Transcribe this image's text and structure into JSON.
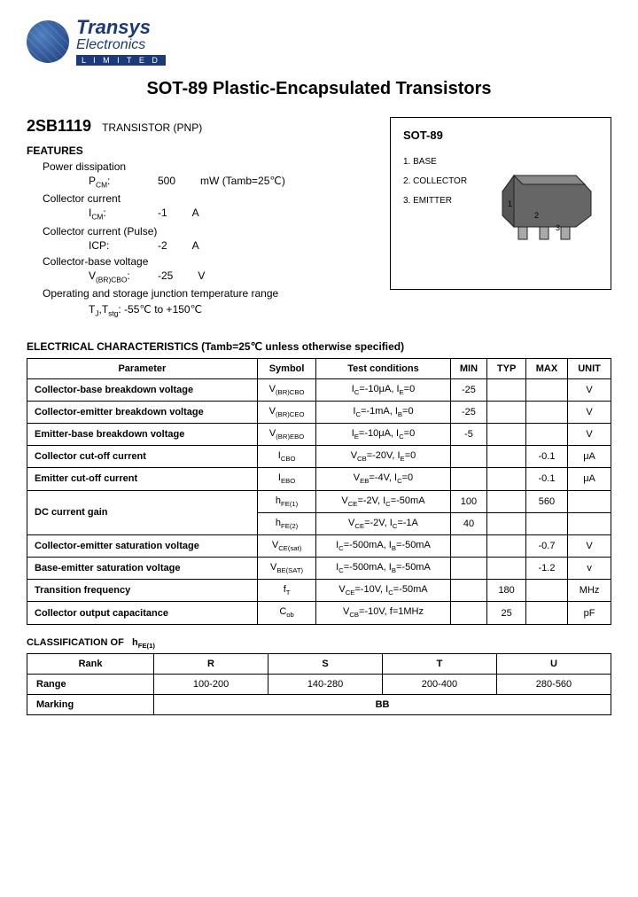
{
  "logo": {
    "brand": "Transys",
    "sub": "Electronics",
    "limited": "L I M I T E D"
  },
  "title": "SOT-89 Plastic-Encapsulated Transistors",
  "part": "2SB1119",
  "type": "TRANSISTOR (PNP)",
  "features_heading": "FEATURES",
  "features": [
    {
      "label": "Power dissipation",
      "sym": "P",
      "sub": "CM",
      "suffix": ":",
      "val": "500",
      "unit": "mW (Tamb=25℃)"
    },
    {
      "label": "Collector current",
      "sym": "I",
      "sub": "CM",
      "suffix": ":",
      "val": "-1",
      "unit": "A"
    },
    {
      "label": "Collector current (Pulse)",
      "sym": "ICP:",
      "sub": "",
      "suffix": "",
      "val": "-2",
      "unit": "A"
    },
    {
      "label": "Collector-base voltage",
      "sym": "V",
      "sub": "(BR)CBO",
      "suffix": ":",
      "val": "-25",
      "unit": "V"
    }
  ],
  "temp_label": "Operating and storage junction temperature range",
  "temp_val": "T_J,T_stg: -55℃ to +150℃",
  "pkg": {
    "title": "SOT-89",
    "pins": [
      "1. BASE",
      "2. COLLECTOR",
      "3. EMITTER"
    ]
  },
  "char_heading": "ELECTRICAL CHARACTERISTICS (Tamb=25℃   unless otherwise   specified)",
  "char_cols": [
    "Parameter",
    "Symbol",
    "Test    conditions",
    "MIN",
    "TYP",
    "MAX",
    "UNIT"
  ],
  "char_rows": [
    [
      "Collector-base breakdown voltage",
      "V(BR)CBO",
      "IC=-10μA, IE=0",
      "-25",
      "",
      "",
      "V"
    ],
    [
      "Collector-emitter breakdown voltage",
      "V(BR)CEO",
      "IC=-1mA, IB=0",
      "-25",
      "",
      "",
      "V"
    ],
    [
      "Emitter-base breakdown voltage",
      "V(BR)EBO",
      "IE=-10μA, IC=0",
      "-5",
      "",
      "",
      "V"
    ],
    [
      "Collector cut-off current",
      "ICBO",
      "VCB=-20V, IE=0",
      "",
      "",
      "-0.1",
      "μA"
    ],
    [
      "Emitter cut-off current",
      "IEBO",
      "VEB=-4V, IC=0",
      "",
      "",
      "-0.1",
      "μA"
    ],
    [
      "DC current gain",
      "hFE(1)",
      "VCE=-2V, IC=-50mA",
      "100",
      "",
      "560",
      ""
    ],
    [
      "",
      "hFE(2)",
      "VCE=-2V, IC=-1A",
      "40",
      "",
      "",
      ""
    ],
    [
      "Collector-emitter saturation voltage",
      "VCE(sat)",
      "IC=-500mA, IB=-50mA",
      "",
      "",
      "-0.7",
      "V"
    ],
    [
      "Base-emitter saturation voltage",
      "VBE(SAT)",
      "IC=-500mA, IB=-50mA",
      "",
      "",
      "-1.2",
      "v"
    ],
    [
      "Transition frequency",
      "fT",
      "VCE=-10V, IC=-50mA",
      "",
      "180",
      "",
      "MHz"
    ],
    [
      "Collector output capacitance",
      "Cob",
      "VCB=-10V, f=1MHz",
      "",
      "25",
      "",
      "pF"
    ]
  ],
  "class_heading": "CLASSIFICATION OF   hFE(1)",
  "class_cols": [
    "Rank",
    "R",
    "S",
    "T",
    "U"
  ],
  "class_rows": [
    [
      "Range",
      "100-200",
      "140-280",
      "200-400",
      "280-560"
    ],
    [
      "Marking",
      "BB"
    ]
  ]
}
